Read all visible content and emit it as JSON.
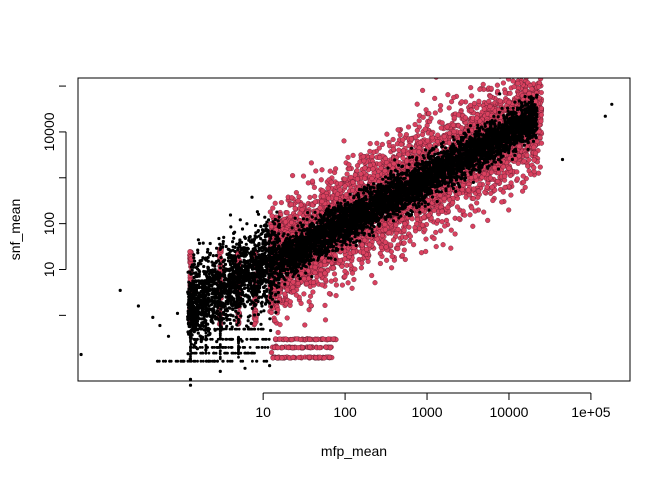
{
  "chart_data": {
    "type": "scatter",
    "title": "",
    "xlabel": "mfp_mean",
    "ylabel": "snf_mean",
    "x_scale": "log",
    "y_scale": "log",
    "xlim": [
      0.055,
      300000
    ],
    "ylim": [
      0.037,
      150000
    ],
    "x_ticks": [
      {
        "value": 10,
        "label": "10"
      },
      {
        "value": 100,
        "label": "100"
      },
      {
        "value": 1000,
        "label": "1000"
      },
      {
        "value": 10000,
        "label": "10000"
      },
      {
        "value": 100000,
        "label": "1e+05"
      }
    ],
    "y_ticks": [
      {
        "value": 10,
        "label": "10"
      },
      {
        "value": 100,
        "label": "100"
      },
      {
        "value": 10000,
        "label": "10000"
      }
    ],
    "grid": false,
    "legend": "none",
    "colors": {
      "highlight": "#d9415f",
      "base": "#000000",
      "axis": "#000000"
    },
    "series": [
      {
        "color": "#d9415f",
        "point_style": "filled circle with black outline",
        "description_points": [
          [
            1.3,
            20
          ],
          [
            1.3,
            5
          ],
          [
            3,
            20
          ],
          [
            3,
            5
          ],
          [
            4,
            30
          ],
          [
            5,
            100
          ],
          [
            8,
            200
          ],
          [
            10,
            600
          ],
          [
            20,
            1500
          ],
          [
            50,
            3000
          ],
          [
            200,
            6000
          ],
          [
            1000,
            8000
          ],
          [
            5000,
            15000
          ],
          [
            20000,
            30000
          ],
          [
            20,
            1
          ],
          [
            50,
            0.5
          ],
          [
            100,
            0.3
          ],
          [
            30,
            0.1
          ],
          [
            80,
            0.1
          ],
          [
            500,
            5
          ],
          [
            3000,
            50
          ],
          [
            10000,
            300
          ],
          [
            20000,
            1500
          ]
        ]
      },
      {
        "color": "#000000",
        "point_style": "small filled dot",
        "description_points": [
          [
            0.2,
            0.1
          ],
          [
            0.3,
            3
          ],
          [
            0.5,
            1
          ],
          [
            0.7,
            0.3
          ],
          [
            1,
            0.1
          ],
          [
            1.3,
            0.1
          ],
          [
            2,
            0.2
          ],
          [
            5,
            0.1
          ],
          [
            10,
            0.1
          ],
          [
            1.3,
            0.03
          ],
          [
            1.3,
            0.05
          ],
          [
            3,
            0.05
          ],
          [
            5,
            2
          ],
          [
            10,
            10
          ],
          [
            100,
            100
          ],
          [
            1000,
            1000
          ],
          [
            10000,
            10000
          ],
          [
            150000,
            35000
          ],
          [
            200000,
            70000
          ],
          [
            50000,
            20000
          ],
          [
            22000,
            20000
          ]
        ]
      }
    ]
  }
}
